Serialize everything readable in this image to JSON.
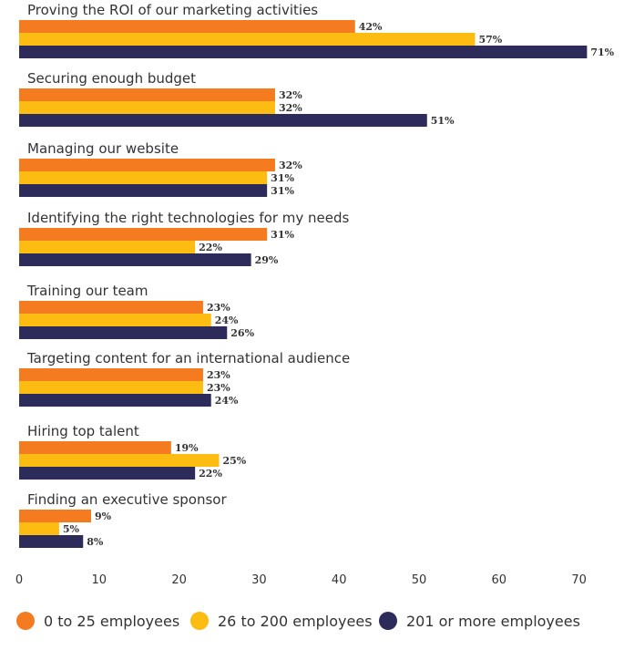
{
  "chart_data": {
    "type": "bar",
    "orientation": "horizontal",
    "categories": [
      "Proving the ROI of our marketing activities",
      "Securing enough budget",
      "Managing our website",
      "Identifying the right technologies for my needs",
      "Training our team",
      "Targeting content for an international audience",
      "Hiring top talent",
      "Finding an executive sponsor"
    ],
    "series": [
      {
        "name": "0 to 25 employees",
        "color": "#f47b20",
        "values": [
          42,
          32,
          32,
          31,
          23,
          23,
          19,
          9
        ]
      },
      {
        "name": "26 to 200 employees",
        "color": "#fcbc12",
        "values": [
          57,
          32,
          31,
          22,
          24,
          23,
          25,
          5
        ]
      },
      {
        "name": "201 or more employees",
        "color": "#2d2b5a",
        "values": [
          71,
          51,
          31,
          29,
          26,
          24,
          22,
          8
        ]
      }
    ],
    "value_suffix": "%",
    "xlim": [
      0,
      70
    ],
    "xticks": [
      "0",
      "10",
      "20",
      "30",
      "40",
      "50",
      "60",
      "70"
    ],
    "grid": false,
    "legend_position": "bottom",
    "title": "",
    "xlabel": "",
    "ylabel": ""
  }
}
